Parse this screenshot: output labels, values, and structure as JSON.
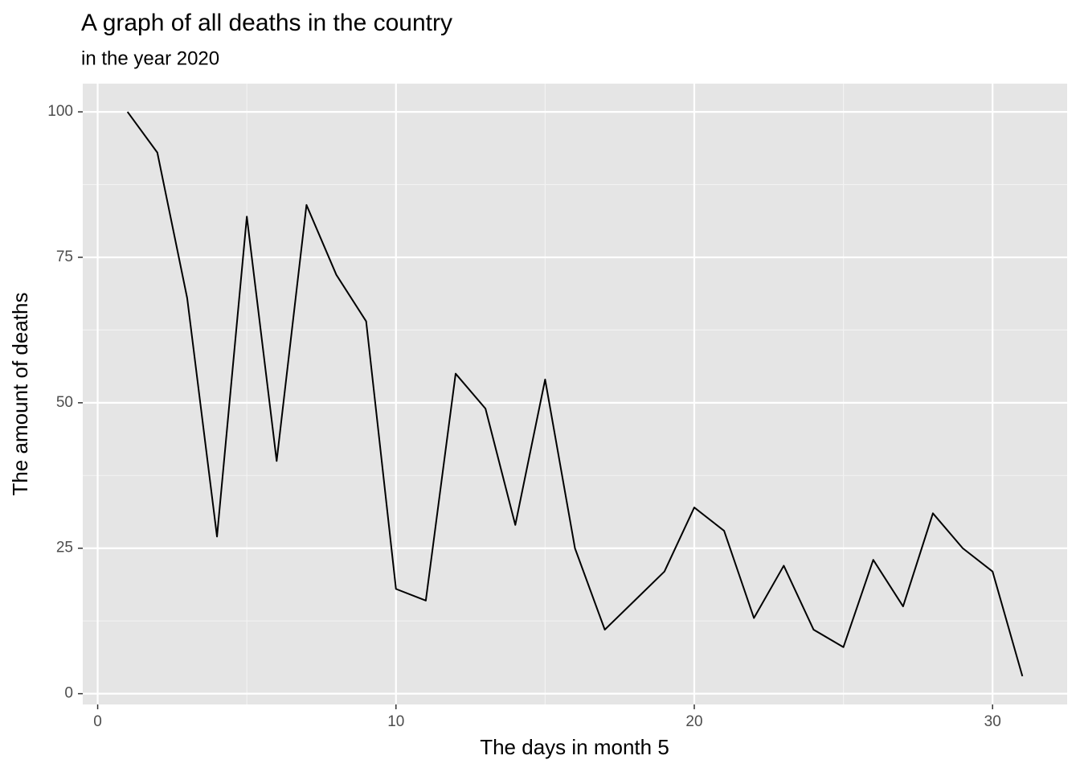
{
  "chart_data": {
    "type": "line",
    "title": "A graph of all deaths in the country",
    "subtitle": "in the year 2020",
    "x_label": "The days in month 5",
    "y_label": "The amount of deaths",
    "x": [
      1,
      2,
      3,
      4,
      5,
      6,
      7,
      8,
      9,
      10,
      11,
      12,
      13,
      14,
      15,
      16,
      17,
      18,
      19,
      20,
      21,
      22,
      23,
      24,
      25,
      26,
      27,
      28,
      29,
      30,
      31
    ],
    "series": [
      {
        "color": "#000000",
        "values": [
          100,
          93,
          68,
          27,
          82,
          40,
          84,
          72,
          64,
          18,
          16,
          55,
          49,
          29,
          54,
          25,
          11,
          16,
          21,
          32,
          28,
          13,
          22,
          11,
          8,
          23,
          15,
          31,
          25,
          21,
          3
        ]
      }
    ],
    "xlim": [
      -0.5,
      32.5
    ],
    "xticks": [
      0,
      10,
      20,
      30
    ],
    "ylim": [
      -1.85,
      104.85
    ],
    "yticks": [
      0,
      25,
      50,
      75,
      100
    ],
    "grid": true
  }
}
